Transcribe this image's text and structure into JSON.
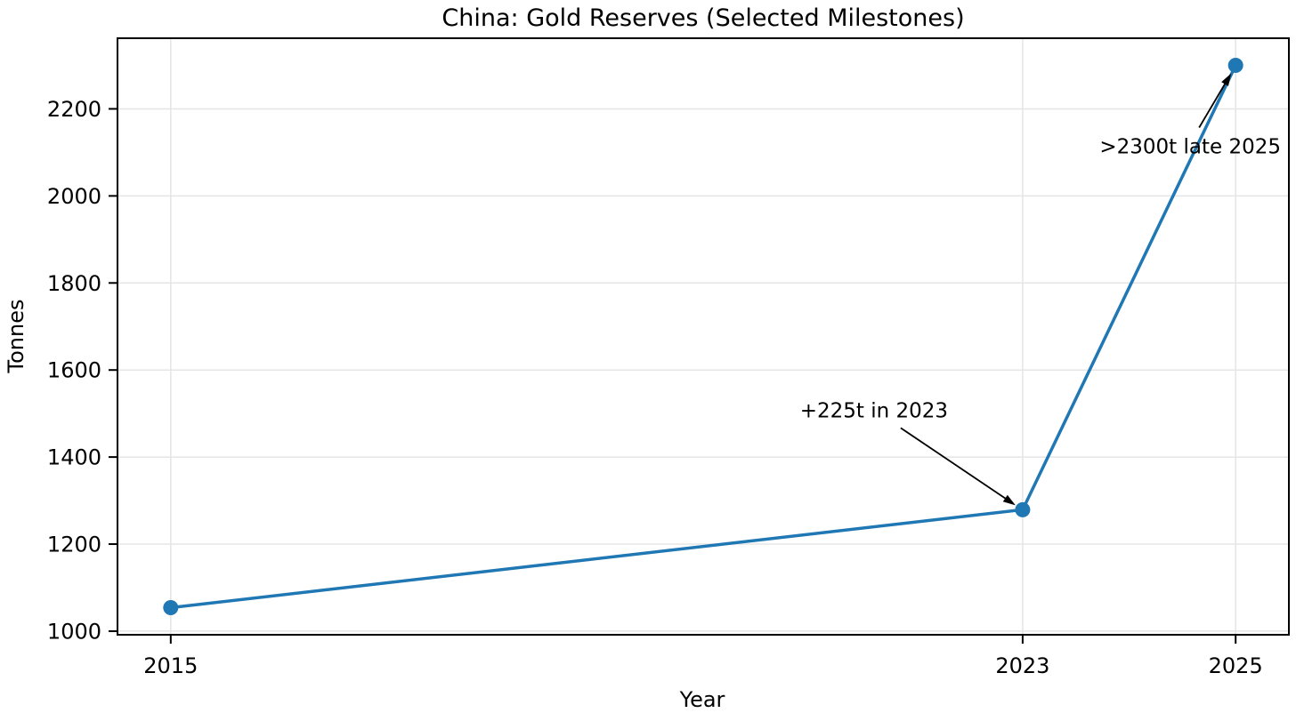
{
  "chart_data": {
    "type": "line",
    "title": "China: Gold Reserves (Selected Milestones)",
    "xlabel": "Year",
    "ylabel": "Tonnes",
    "x": [
      2015,
      2023,
      2025
    ],
    "values": [
      1054,
      1279,
      2300
    ],
    "xlim": [
      2014.5,
      2025.5
    ],
    "ylim": [
      991.7,
      2362.3
    ],
    "xticks": [
      2015,
      2023,
      2025
    ],
    "yticks": [
      1000,
      1200,
      1400,
      1600,
      1800,
      2000,
      2200
    ],
    "grid": true,
    "legend": "none",
    "line_color": "#1f77b4",
    "marker": "circle",
    "marker_color": "#1f77b4",
    "annotations": [
      {
        "text": "+225t in 2023",
        "x": 2023,
        "y": 1279,
        "text_offset": [
          -167,
          -112
        ],
        "arrow_tail_offset": [
          -137,
          -92
        ],
        "arrow_head_offset": [
          -8,
          -5
        ]
      },
      {
        "text": ">2300t late 2025",
        "x": 2025,
        "y": 2300,
        "text_offset": [
          -51,
          91
        ],
        "arrow_tail_offset": [
          -41,
          70
        ],
        "arrow_head_offset": [
          -5,
          9
        ]
      }
    ]
  }
}
